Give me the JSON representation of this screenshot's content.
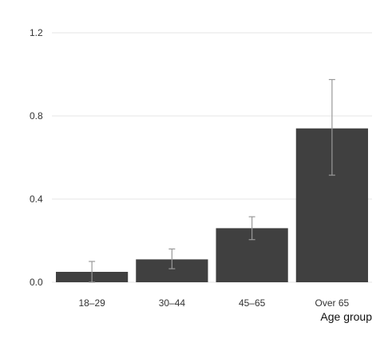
{
  "chart_data": {
    "type": "bar",
    "categories": [
      "18–29",
      "30–44",
      "45–65",
      "Over 65"
    ],
    "values": [
      0.05,
      0.11,
      0.26,
      0.74
    ],
    "error_low": [
      0.0,
      0.065,
      0.205,
      0.515
    ],
    "error_high": [
      0.1,
      0.16,
      0.315,
      0.975
    ],
    "title": "",
    "xlabel": "Age group",
    "ylabel": "",
    "ylim": [
      0,
      1.2
    ],
    "yticks": [
      0.0,
      0.4,
      0.8,
      1.2
    ],
    "ytick_labels": [
      "0.0",
      "0.4",
      "0.8",
      "1.2"
    ],
    "grid": "horizontal",
    "colors": {
      "bar": "#404040",
      "error_bar": "#999999",
      "grid": "#e6e6e6"
    }
  }
}
